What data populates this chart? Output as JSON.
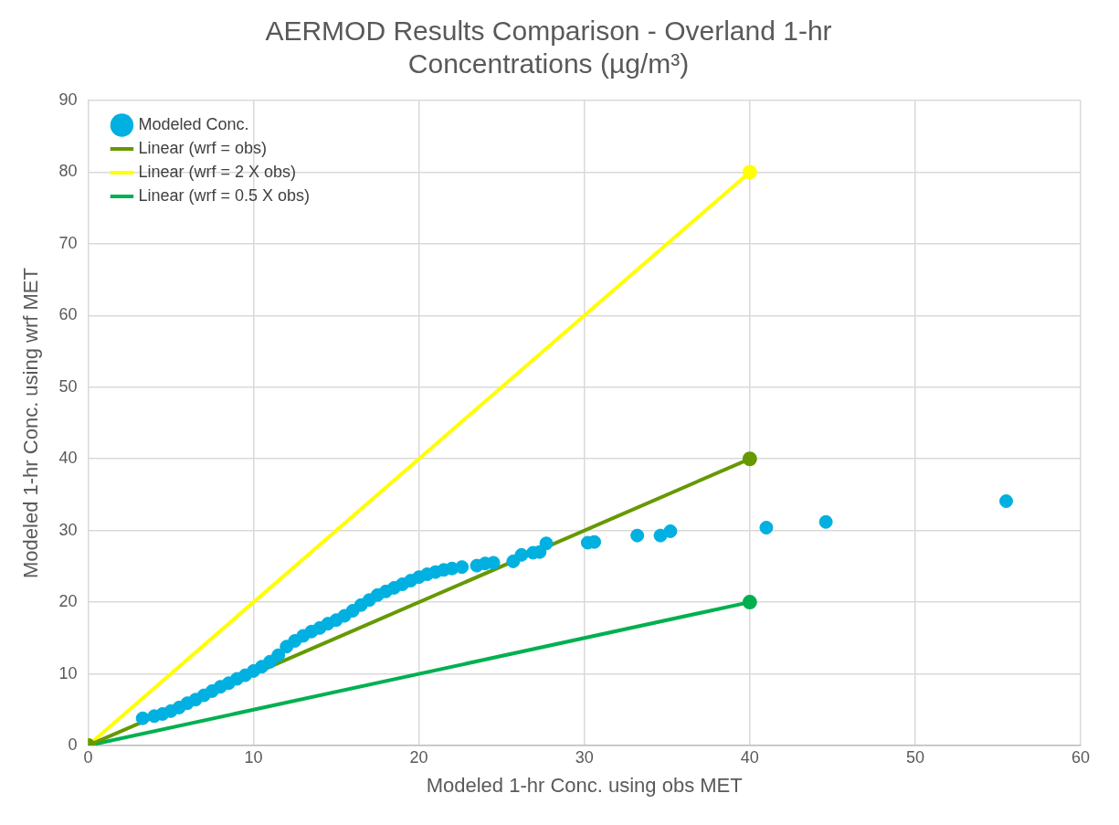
{
  "chart_data": {
    "type": "scatter",
    "title": "AERMOD Results Comparison - Overland 1-hr Concentrations (µg/m³)",
    "xlabel": "Modeled 1-hr Conc. using obs MET",
    "ylabel": "Modeled 1-hr Conc. using wrf MET",
    "xlim": [
      0,
      60
    ],
    "xticks": [
      0,
      10,
      20,
      30,
      40,
      50,
      60
    ],
    "ylim": [
      0,
      90
    ],
    "yticks": [
      0,
      10,
      20,
      30,
      40,
      50,
      60,
      70,
      80,
      90
    ],
    "grid": true,
    "legend": "top left",
    "marker": "circle",
    "series": [
      {
        "name": "Modeled Conc.",
        "type": "scatter",
        "color": "#00b0e0",
        "x": [
          3.3,
          4,
          4.5,
          5,
          5.5,
          6,
          6.5,
          7,
          7.5,
          8,
          8.5,
          9,
          9.5,
          10,
          10.5,
          11,
          11.5,
          12,
          12.5,
          13,
          13.5,
          14,
          14.5,
          15,
          15.5,
          16,
          16.5,
          17,
          17.5,
          18,
          18.5,
          19,
          19.5,
          20,
          20.5,
          21,
          21.5,
          22,
          22.6,
          23.5,
          24,
          24.5,
          25.7,
          26.2,
          26.9,
          27.3,
          27.7,
          30.2,
          30.6,
          33.2,
          34.6,
          35.2,
          41,
          44.6,
          55.5
        ],
        "values": [
          3.8,
          4.1,
          4.4,
          4.8,
          5.3,
          5.9,
          6.4,
          7,
          7.6,
          8.2,
          8.7,
          9.3,
          9.8,
          10.4,
          11,
          11.7,
          12.6,
          13.8,
          14.6,
          15.3,
          15.9,
          16.4,
          17,
          17.5,
          18.1,
          18.8,
          19.6,
          20.3,
          21,
          21.5,
          22,
          22.5,
          23,
          23.5,
          23.9,
          24.2,
          24.5,
          24.7,
          24.9,
          25.1,
          25.4,
          25.5,
          25.7,
          26.6,
          26.9,
          27,
          28.2,
          28.3,
          28.4,
          29.3,
          29.3,
          29.9,
          30.4,
          31.2,
          34.1
        ]
      },
      {
        "name": "Linear (wrf = obs)",
        "type": "line",
        "color": "#669900",
        "x": [
          0,
          40
        ],
        "values": [
          0,
          40
        ]
      },
      {
        "name": "Linear (wrf = 2 X obs)",
        "type": "line",
        "color": "#ffff00",
        "x": [
          0,
          40
        ],
        "values": [
          0,
          80
        ]
      },
      {
        "name": "Linear (wrf = 0.5 X obs)",
        "type": "line",
        "color": "#00b050",
        "x": [
          0,
          40
        ],
        "values": [
          0,
          20
        ]
      }
    ]
  }
}
